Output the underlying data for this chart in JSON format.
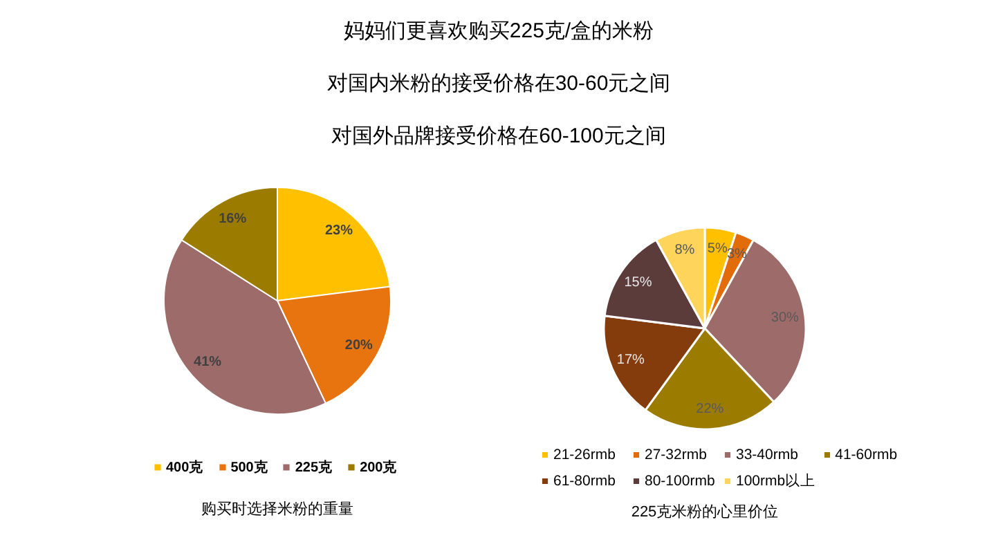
{
  "chart_data": [
    {
      "type": "other",
      "annotations": [
        "妈妈们更喜欢购买225克/盒的米粉",
        "对国内米粉的接受价格在30-60元之间",
        "对国外品牌接受价格在60-100元之间"
      ]
    },
    {
      "type": "pie",
      "categories": [
        "400克",
        "500克",
        "225克",
        "200克"
      ],
      "values": [
        23,
        20,
        41,
        16
      ],
      "colors": [
        "#ffc000",
        "#e8740f",
        "#9e6b6b",
        "#9c7c00"
      ],
      "value_labels": [
        "23%",
        "20%",
        "41%",
        "16%"
      ],
      "legend": "bottom",
      "annotations": [
        "购买时选择米粉的重量"
      ]
    },
    {
      "type": "pie",
      "categories": [
        "21-26rmb",
        "27-32rmb",
        "33-40rmb",
        "41-60rmb",
        "61-80rmb",
        "80-100rmb",
        "100rmb以上"
      ],
      "values": [
        5,
        3,
        30,
        22,
        17,
        15,
        8
      ],
      "colors": [
        "#ffc000",
        "#e36c0a",
        "#9e6b6b",
        "#9c7c00",
        "#843c0c",
        "#5c3b3b",
        "#ffd45a"
      ],
      "value_labels": [
        "5%",
        "3%",
        "30%",
        "22%",
        "17%",
        "15%",
        "8%"
      ],
      "legend": "bottom",
      "annotations": [
        "225克米粉的心里价位"
      ]
    }
  ]
}
